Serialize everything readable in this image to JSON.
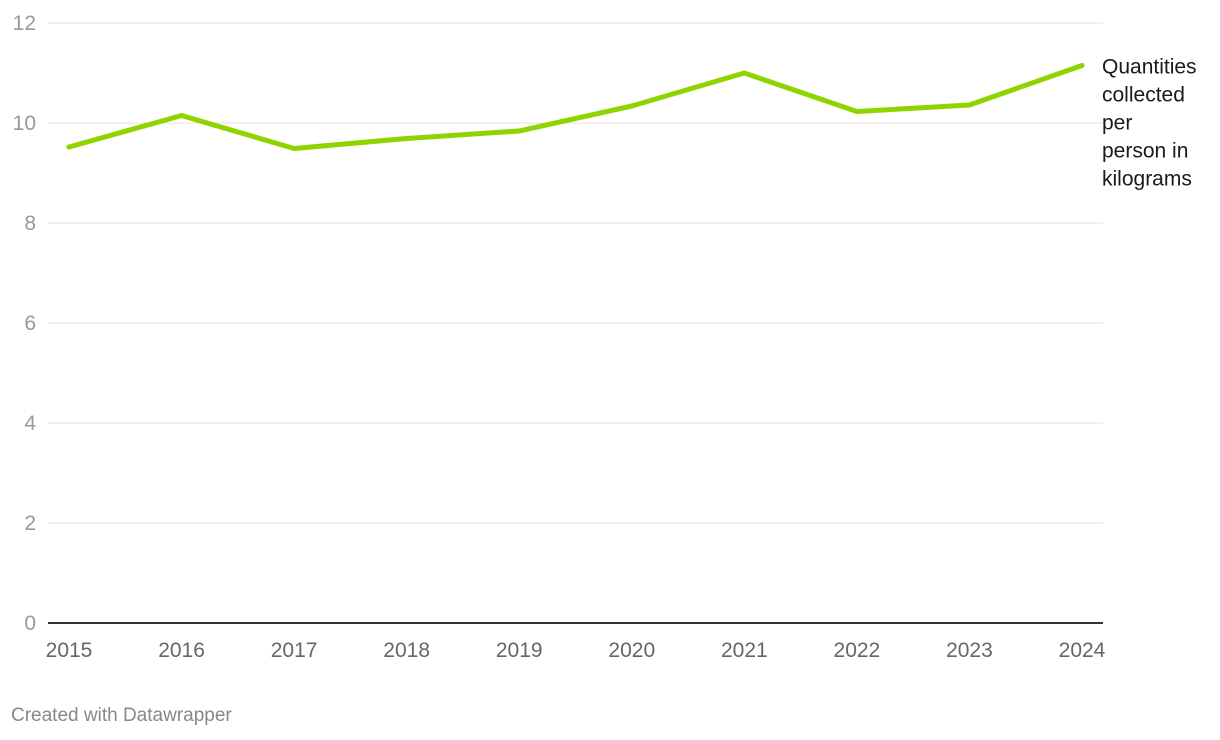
{
  "footer": {
    "credit": "Created with Datawrapper"
  },
  "chart_data": {
    "type": "line",
    "x": [
      "2015",
      "2016",
      "2017",
      "2018",
      "2019",
      "2020",
      "2021",
      "2022",
      "2023",
      "2024"
    ],
    "series": [
      {
        "name": "Quantities collected per person in kilograms",
        "label_lines": [
          "Quantities",
          "collected",
          "per",
          "person in",
          "kilograms"
        ],
        "values": [
          9.52,
          10.15,
          9.49,
          9.69,
          9.84,
          10.34,
          11.0,
          10.23,
          10.36,
          11.15
        ],
        "color": "#8fd400"
      }
    ],
    "yticks": [
      0,
      2,
      4,
      6,
      8,
      10,
      12
    ],
    "ylim": [
      0,
      12
    ],
    "grid": true,
    "title": "",
    "xlabel": "",
    "ylabel": ""
  }
}
